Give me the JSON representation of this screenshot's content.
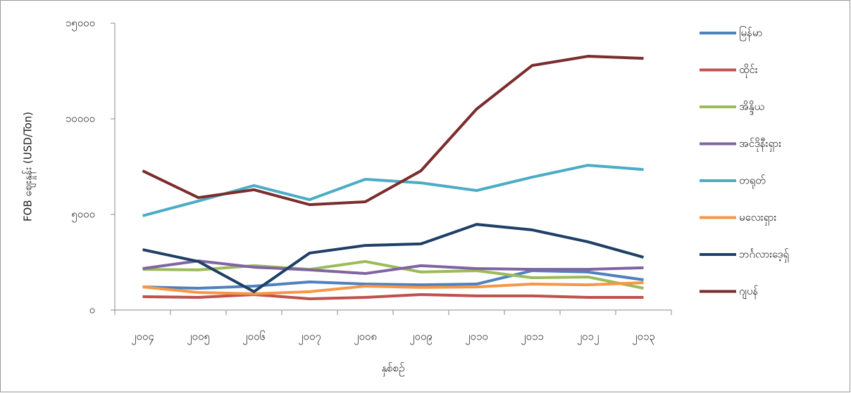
{
  "chart_data": {
    "type": "line",
    "x_label": "နှစ်စဉ်",
    "y_label": "FOB ဈေးနှုန်း (USD/Ton)",
    "categories": [
      "၂၀၀၄",
      "၂၀၀၅",
      "၂၀၀၆",
      "၂၀၀၇",
      "၂၀၀၈",
      "၂၀၀၉",
      "၂၀၁၀",
      "၂၀၁၁",
      "၂၀၁၂",
      "၂၀၁၃"
    ],
    "ylim": [
      0,
      15000
    ],
    "yticks": [
      {
        "value": 0,
        "label": "၀"
      },
      {
        "value": 5000,
        "label": "၅၀၀၀"
      },
      {
        "value": 10000,
        "label": "၁၀၀၀၀"
      },
      {
        "value": 15000,
        "label": "၁၅၀၀၀"
      }
    ],
    "legend": "right",
    "series": [
      {
        "name": "မြန်မာ",
        "color": "#4f81bd",
        "values": [
          1210,
          1140,
          1250,
          1470,
          1360,
          1320,
          1360,
          2060,
          1990,
          1580
        ]
      },
      {
        "name": "ထိုင်း",
        "color": "#c0504d",
        "values": [
          700,
          660,
          810,
          590,
          660,
          810,
          740,
          740,
          660,
          660
        ]
      },
      {
        "name": "အိန္ဒိယ",
        "color": "#9bbb59",
        "values": [
          2130,
          2100,
          2320,
          2130,
          2540,
          1990,
          2060,
          1690,
          1730,
          1140
        ]
      },
      {
        "name": "အင်ဒိုနီးရှား",
        "color": "#8064a2",
        "values": [
          2170,
          2570,
          2240,
          2100,
          1910,
          2320,
          2170,
          2130,
          2130,
          2210
        ]
      },
      {
        "name": "တရုတ်",
        "color": "#4bacc6",
        "values": [
          4930,
          5700,
          6510,
          5770,
          6840,
          6650,
          6250,
          6950,
          7570,
          7350
        ]
      },
      {
        "name": "မလေးရှား",
        "color": "#f79646",
        "values": [
          1210,
          920,
          850,
          960,
          1250,
          1180,
          1210,
          1360,
          1320,
          1430
        ]
      },
      {
        "name": "ဘင်္ဂလားဒေ့ရှ်",
        "color": "#1f3f66",
        "values": [
          3160,
          2540,
          960,
          2980,
          3380,
          3460,
          4480,
          4190,
          3570,
          2760
        ]
      },
      {
        "name": "ဂျပန်",
        "color": "#7b2c2c",
        "values": [
          7280,
          5880,
          6290,
          5510,
          5660,
          7280,
          10510,
          12790,
          13270,
          13160
        ]
      }
    ]
  }
}
